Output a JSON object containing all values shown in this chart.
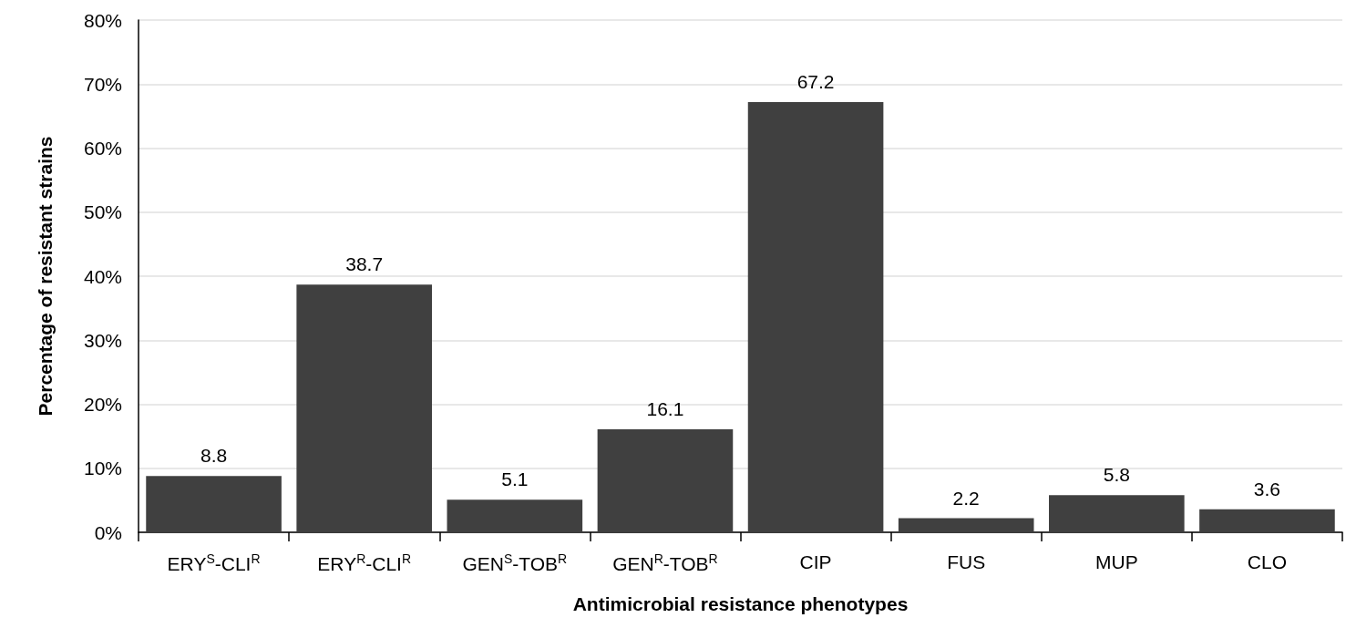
{
  "chart_data": {
    "type": "bar",
    "xlabel": "Antimicrobial resistance phenotypes",
    "ylabel": "Percentage of resistant strains",
    "categories": [
      "ERY$^{S}$-CLI$^{R}$",
      "ERY$^{R}$-CLI$^{R}$",
      "GEN$^{S}$-TOB$^{R}$",
      "GEN$^{R}$-TOB$^{R}$",
      "CIP",
      "FUS",
      "MUP",
      "CLO"
    ],
    "values": [
      8.8,
      38.7,
      5.1,
      16.1,
      67.2,
      2.2,
      5.8,
      3.6
    ],
    "color": "#404040",
    "data_labels": true,
    "grid": "y",
    "ylim": [
      0,
      80
    ],
    "yticks": [
      {
        "value": 0,
        "label": "0%"
      },
      {
        "value": 10,
        "label": "10%"
      },
      {
        "value": 20,
        "label": "20%"
      },
      {
        "value": 30,
        "label": "30%"
      },
      {
        "value": 40,
        "label": "40%"
      },
      {
        "value": 50,
        "label": "50%"
      },
      {
        "value": 60,
        "label": "60%"
      },
      {
        "value": 70,
        "label": "70%"
      },
      {
        "value": 80,
        "label": "80%"
      }
    ]
  }
}
